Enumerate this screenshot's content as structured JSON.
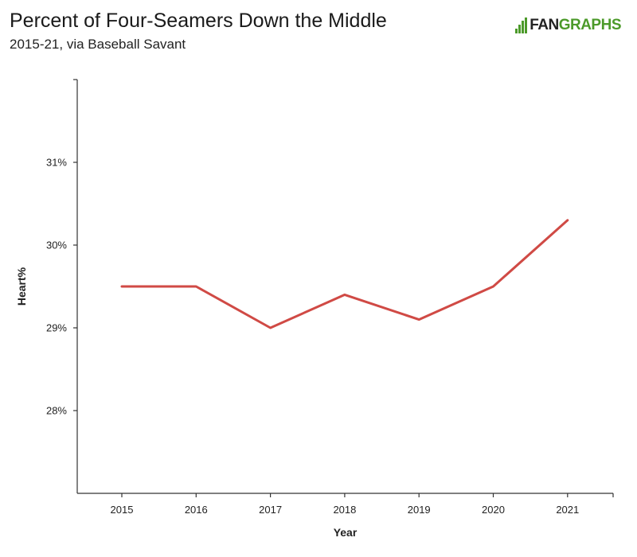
{
  "header": {
    "title": "Percent of Four-Seamers Down the Middle",
    "subtitle": "2015-21, via Baseball Savant",
    "logo_fan": "FAN",
    "logo_graphs": "GRAPHS"
  },
  "colors": {
    "line": "#d04a45",
    "axis": "#333333",
    "logo_green": "#4c9a2a"
  },
  "chart_data": {
    "type": "line",
    "title": "Percent of Four-Seamers Down the Middle",
    "subtitle": "2015-21, via Baseball Savant",
    "xlabel": "Year",
    "ylabel": "Heart%",
    "x": [
      "2015",
      "2016",
      "2017",
      "2018",
      "2019",
      "2020",
      "2021"
    ],
    "series": [
      {
        "values": [
          29.5,
          29.5,
          29.0,
          29.4,
          29.1,
          29.5,
          30.3
        ]
      }
    ],
    "y_ticks": [
      28,
      29,
      30,
      31
    ],
    "y_tick_labels": [
      "28%",
      "29%",
      "30%",
      "31%"
    ],
    "ylim": [
      27.0,
      32.0
    ],
    "grid": false,
    "legend": "none"
  }
}
